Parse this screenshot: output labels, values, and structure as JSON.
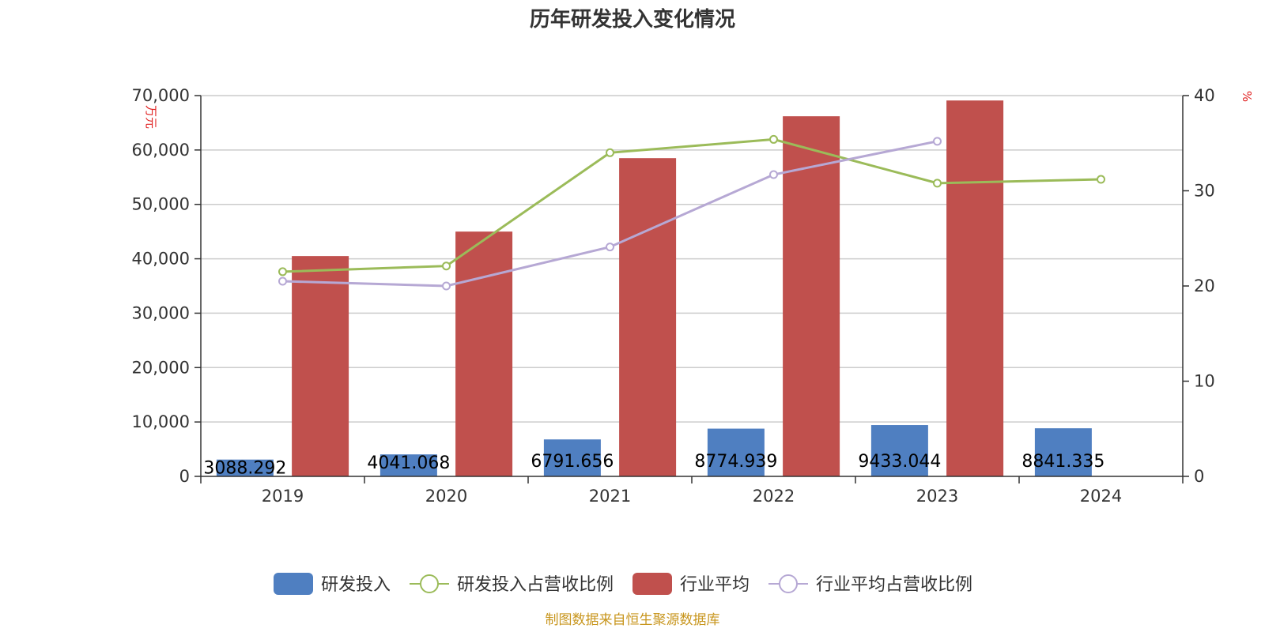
{
  "chart_data": {
    "type": "bar",
    "title": "历年研发投入变化情况",
    "categories": [
      "2019",
      "2020",
      "2021",
      "2022",
      "2023",
      "2024"
    ],
    "y_left": {
      "unit": "万元",
      "min": 0,
      "max": 70000,
      "step": 10000,
      "tick_labels": [
        "0",
        "10,000",
        "20,000",
        "30,000",
        "40,000",
        "50,000",
        "60,000",
        "70,000"
      ]
    },
    "y_right": {
      "unit": "%",
      "min": 0,
      "max": 40,
      "step": 10,
      "tick_labels": [
        "0",
        "10",
        "20",
        "30",
        "40"
      ]
    },
    "grid": true,
    "legend_position": "bottom",
    "series": [
      {
        "name": "研发投入",
        "kind": "bar",
        "axis": "left",
        "color": "#4f7fc1",
        "values": [
          3088.292,
          4041.068,
          6791.656,
          8774.939,
          9433.044,
          8841.335
        ],
        "labels": [
          "3088.292",
          "4041.068",
          "6791.656",
          "8774.939",
          "9433.044",
          "8841.335"
        ]
      },
      {
        "name": "研发投入占营收比例",
        "kind": "line",
        "axis": "right",
        "color": "#9bbb59",
        "values": [
          21.5,
          22.1,
          34.0,
          35.4,
          30.8,
          31.2
        ]
      },
      {
        "name": "行业平均",
        "kind": "bar",
        "axis": "left",
        "color": "#c0504d",
        "values": [
          40500,
          45000,
          58500,
          66200,
          69100,
          null
        ]
      },
      {
        "name": "行业平均占营收比例",
        "kind": "line",
        "axis": "right",
        "color": "#b6a8d4",
        "values": [
          20.5,
          20.0,
          24.1,
          31.7,
          35.2,
          null
        ]
      }
    ],
    "source": "制图数据来自恒生聚源数据库"
  }
}
